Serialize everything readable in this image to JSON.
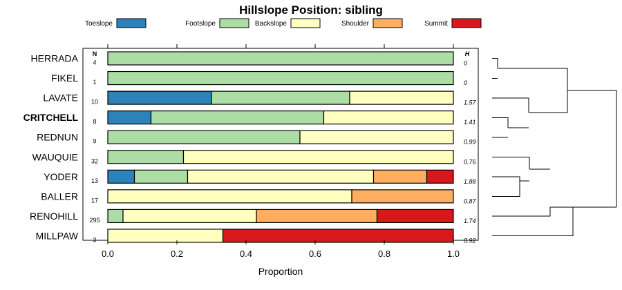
{
  "chart_data": {
    "type": "bar",
    "stacked": true,
    "orientation": "horizontal",
    "title": "Hillslope Position: sibling",
    "xlabel": "Proportion",
    "ylabel": "",
    "xlim": [
      0,
      1
    ],
    "x_ticks": [
      "0.0",
      "0.2",
      "0.4",
      "0.6",
      "0.8",
      "1.0"
    ],
    "x_tick_values": [
      0,
      0.2,
      0.4,
      0.6,
      0.8,
      1.0
    ],
    "n_header": "N",
    "h_header": "H",
    "series": [
      {
        "name": "Toeslope",
        "color": "#2b83ba"
      },
      {
        "name": "Footslope",
        "color": "#abdda4"
      },
      {
        "name": "Backslope",
        "color": "#ffffbf"
      },
      {
        "name": "Shoulder",
        "color": "#fdae61"
      },
      {
        "name": "Summit",
        "color": "#d7191c"
      }
    ],
    "categories": [
      {
        "name": "HERRADA",
        "n": "4",
        "h": "0",
        "bold": false,
        "values": [
          0,
          1,
          0,
          0,
          0
        ]
      },
      {
        "name": "FIKEL",
        "n": "1",
        "h": "0",
        "bold": false,
        "values": [
          0,
          1,
          0,
          0,
          0
        ]
      },
      {
        "name": "LAVATE",
        "n": "10",
        "h": "1.57",
        "bold": false,
        "values": [
          0.3,
          0.4,
          0.3,
          0,
          0
        ]
      },
      {
        "name": "CRITCHELL",
        "n": "8",
        "h": "1.41",
        "bold": true,
        "values": [
          0.125,
          0.5,
          0.375,
          0,
          0
        ]
      },
      {
        "name": "REDNUN",
        "n": "9",
        "h": "0.99",
        "bold": false,
        "values": [
          0,
          0.556,
          0.444,
          0,
          0
        ]
      },
      {
        "name": "WAUQUIE",
        "n": "32",
        "h": "0.76",
        "bold": false,
        "values": [
          0,
          0.219,
          0.781,
          0,
          0
        ]
      },
      {
        "name": "YODER",
        "n": "13",
        "h": "1.88",
        "bold": false,
        "values": [
          0.077,
          0.154,
          0.538,
          0.154,
          0.077
        ]
      },
      {
        "name": "BALLER",
        "n": "17",
        "h": "0.87",
        "bold": false,
        "values": [
          0,
          0,
          0.706,
          0.294,
          0
        ]
      },
      {
        "name": "RENOHILL",
        "n": "295",
        "h": "1.74",
        "bold": false,
        "values": [
          0,
          0.044,
          0.386,
          0.349,
          0.221
        ]
      },
      {
        "name": "MILLPAW",
        "n": "3",
        "h": "0.92",
        "bold": false,
        "values": [
          0,
          0,
          0.333,
          0,
          0.667
        ]
      }
    ],
    "dendrogram": "hierarchical clustering of soil series by hillslope position proportions"
  }
}
